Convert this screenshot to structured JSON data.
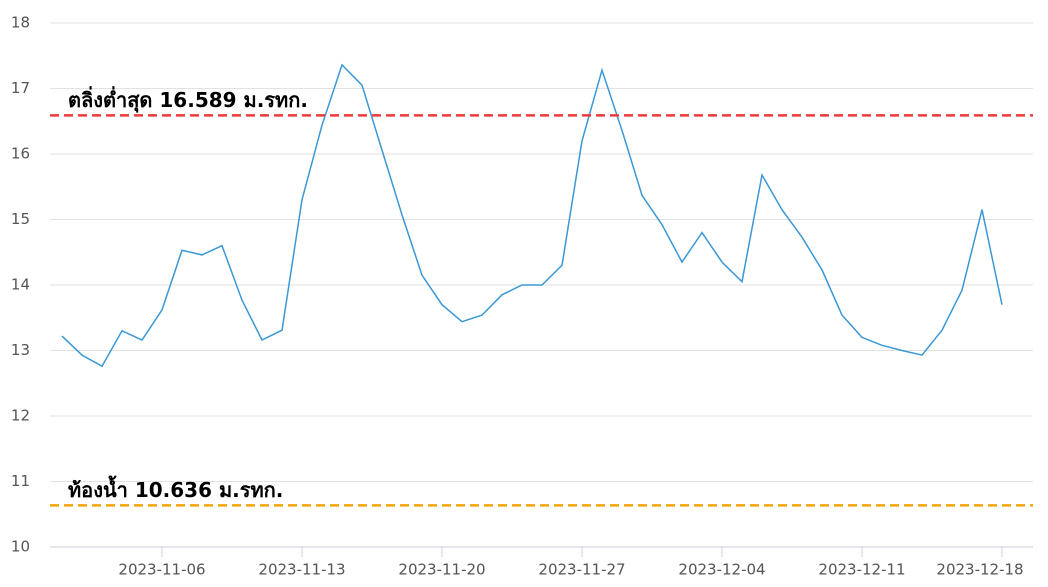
{
  "chart_data": {
    "type": "line",
    "x": [
      "2023-11-01",
      "2023-11-02",
      "2023-11-03",
      "2023-11-04",
      "2023-11-05",
      "2023-11-06",
      "2023-11-07",
      "2023-11-08",
      "2023-11-09",
      "2023-11-10",
      "2023-11-11",
      "2023-11-12",
      "2023-11-13",
      "2023-11-14",
      "2023-11-15",
      "2023-11-16",
      "2023-11-17",
      "2023-11-18",
      "2023-11-19",
      "2023-11-20",
      "2023-11-21",
      "2023-11-22",
      "2023-11-23",
      "2023-11-24",
      "2023-11-25",
      "2023-11-26",
      "2023-11-27",
      "2023-11-28",
      "2023-11-29",
      "2023-11-30",
      "2023-12-01",
      "2023-12-02",
      "2023-12-03",
      "2023-12-04",
      "2023-12-05",
      "2023-12-06",
      "2023-12-07",
      "2023-12-08",
      "2023-12-09",
      "2023-12-10",
      "2023-12-11",
      "2023-12-12",
      "2023-12-13",
      "2023-12-14",
      "2023-12-15",
      "2023-12-16",
      "2023-12-17",
      "2023-12-18"
    ],
    "series": [
      {
        "color": "#3a98d5",
        "values": [
          13.22,
          12.93,
          12.76,
          13.3,
          13.16,
          13.62,
          14.53,
          14.46,
          14.6,
          13.77,
          13.16,
          13.31,
          15.3,
          16.44,
          17.36,
          17.05,
          16.06,
          15.07,
          14.15,
          13.7,
          13.44,
          13.54,
          13.85,
          14.0,
          14.0,
          14.3,
          16.2,
          17.28,
          16.36,
          15.37,
          14.92,
          14.35,
          14.8,
          14.35,
          14.05,
          15.68,
          15.15,
          14.73,
          14.23,
          13.54,
          13.2,
          13.08,
          13.0,
          12.93,
          13.31,
          13.92,
          15.15,
          13.7
        ]
      }
    ],
    "xlim": [
      "2023-10-31",
      "2023-12-20"
    ],
    "xticks": [
      "2023-11-06",
      "2023-11-13",
      "2023-11-20",
      "2023-11-27",
      "2023-12-04",
      "2023-12-11",
      "2023-12-18"
    ],
    "ylim": [
      10,
      18
    ],
    "yticks": [
      10,
      11,
      12,
      13,
      14,
      15,
      16,
      17,
      18
    ],
    "grid": true,
    "reference_lines": [
      {
        "value": 16.589,
        "label": "ตลิ่งต่ำสุด 16.589 ม.รทก.",
        "color": "#f03a3a"
      },
      {
        "value": 10.636,
        "label": "ท้องน้ำ 10.636 ม.รทก.",
        "color": "#f5a40a"
      }
    ]
  }
}
